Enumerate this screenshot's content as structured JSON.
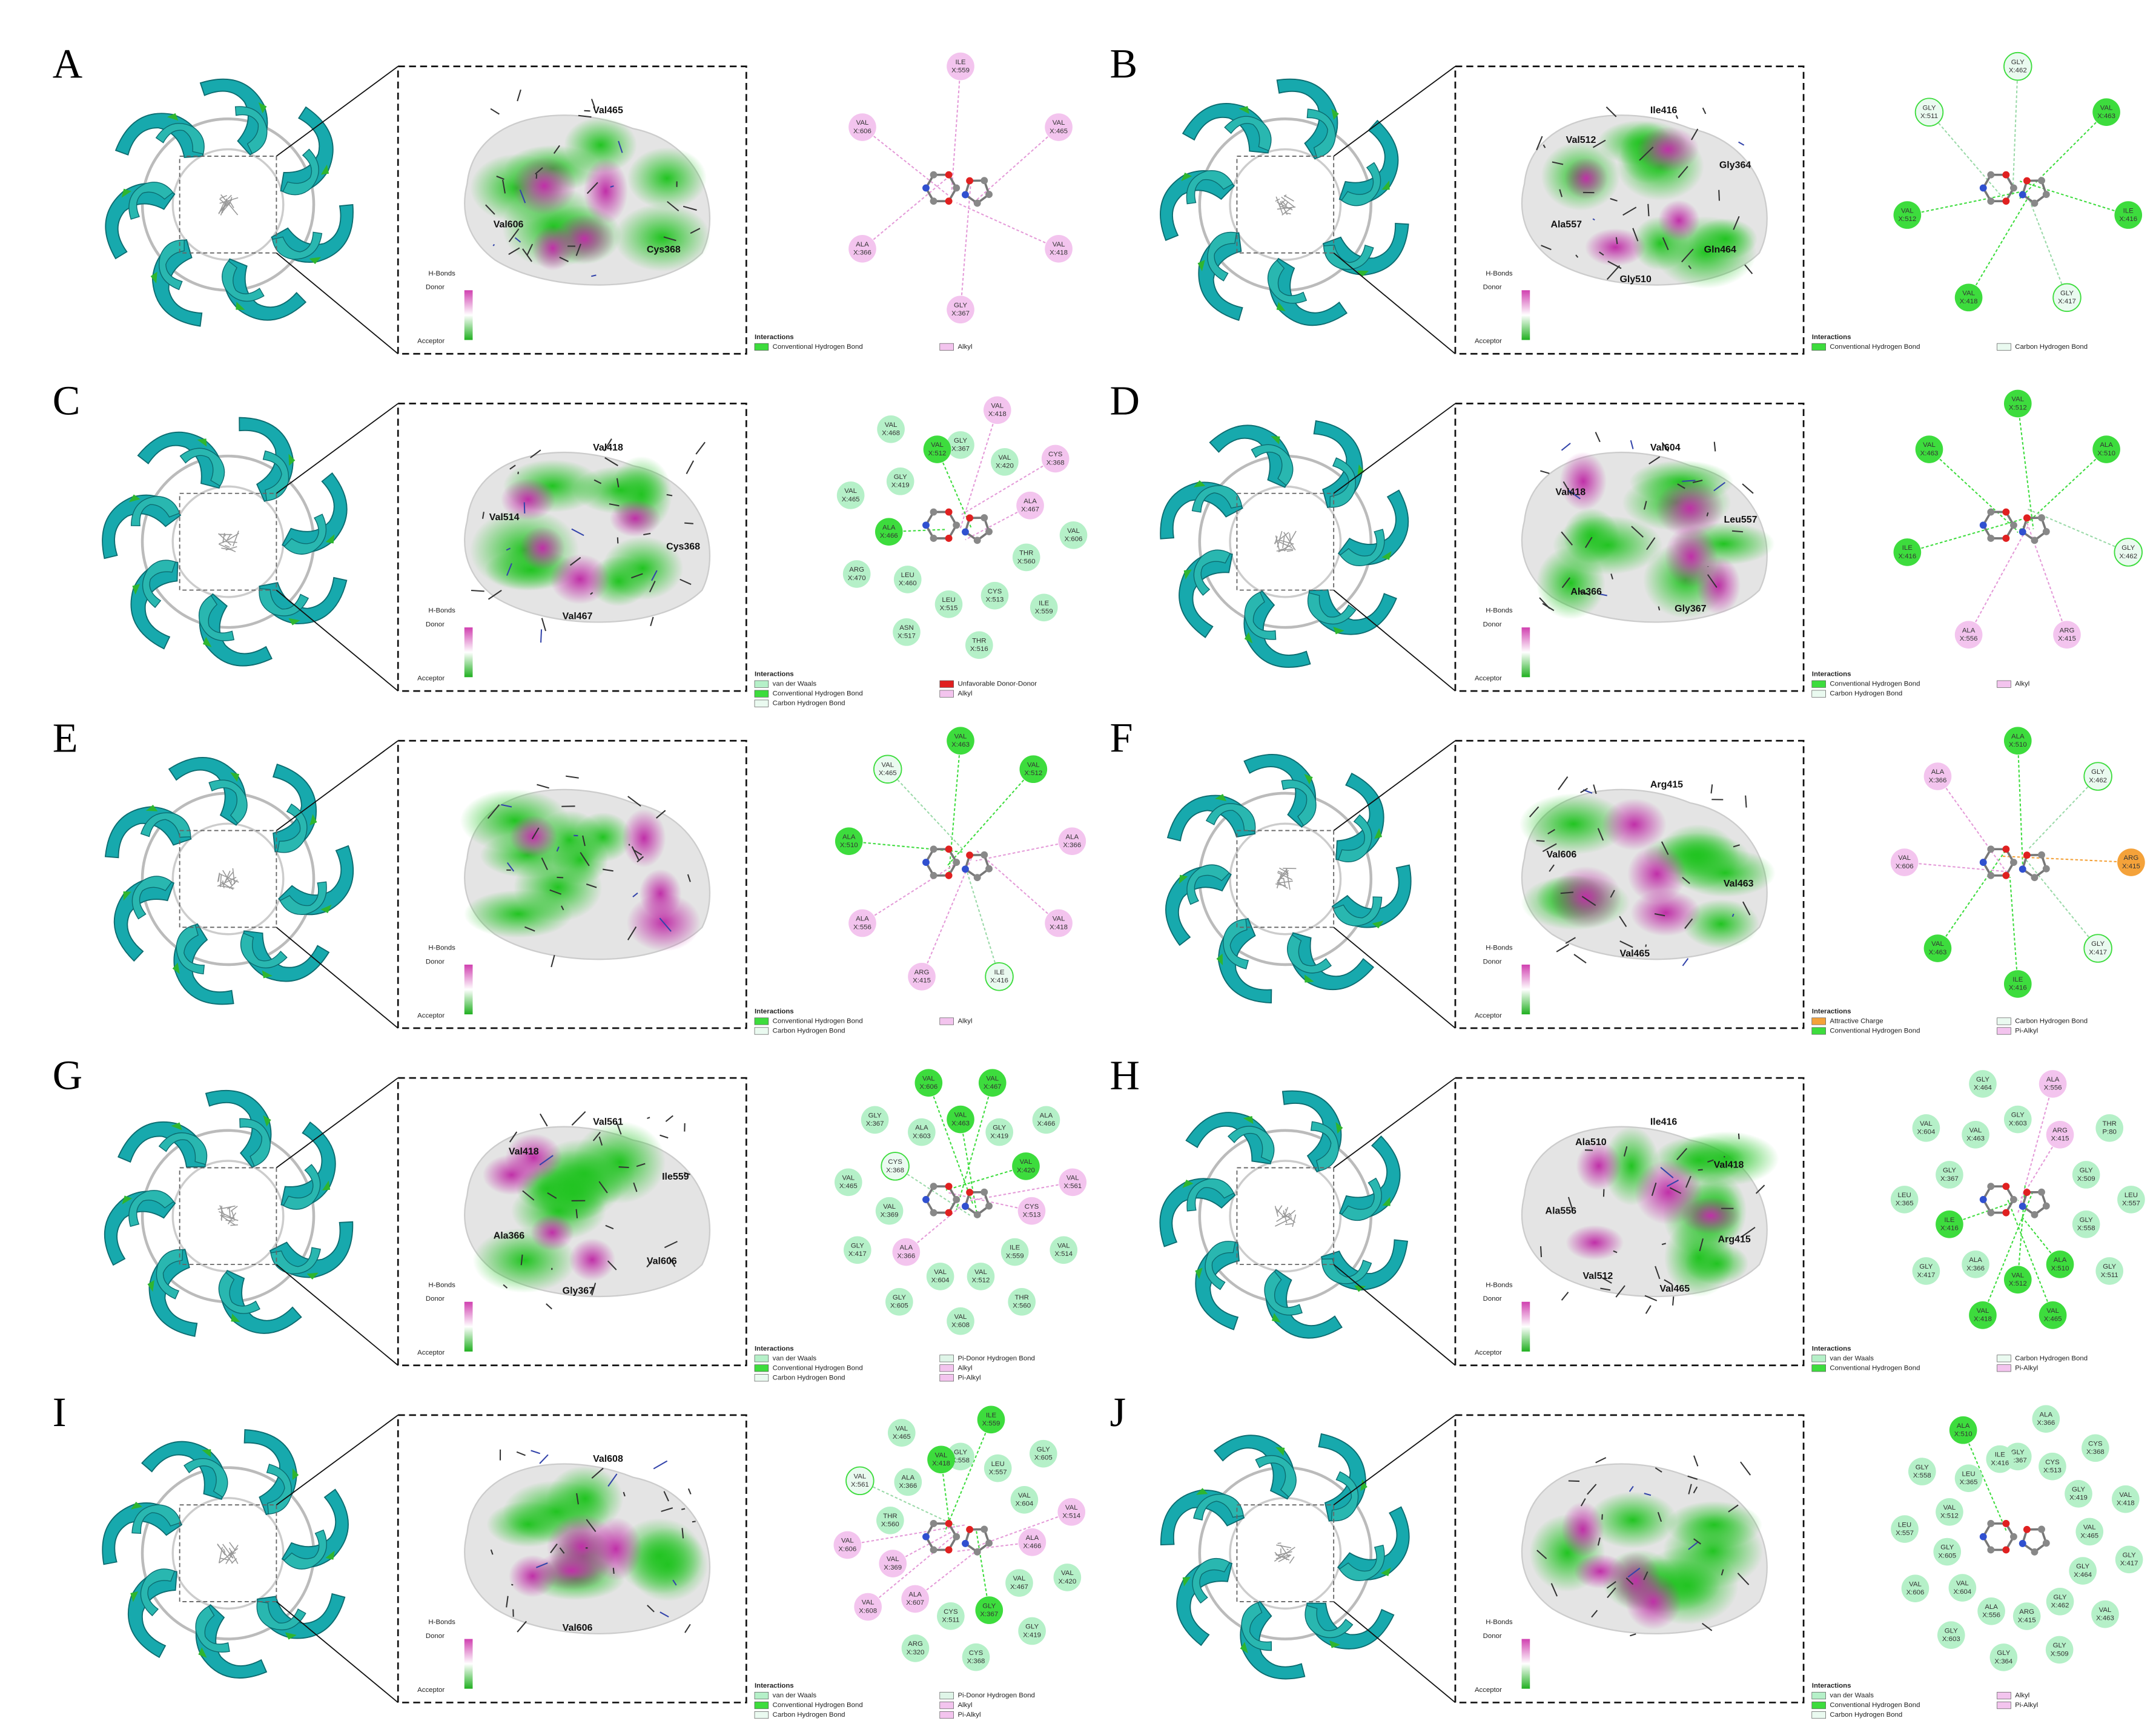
{
  "shared": {
    "hbond_title": "H-Bonds",
    "donor": "Donor",
    "acceptor": "Acceptor",
    "interactions": "Interactions"
  },
  "panels": [
    {
      "label": "A",
      "labels_3d": [
        "Val465",
        "Cys368",
        "Val606"
      ],
      "residues": [
        {
          "res": "ILE",
          "id": "X:559",
          "color": "#f3c4ee"
        },
        {
          "res": "VAL",
          "id": "X:465",
          "color": "#f3c4ee"
        },
        {
          "res": "VAL",
          "id": "X:418",
          "color": "#f3c4ee"
        },
        {
          "res": "GLY",
          "id": "X:367",
          "color": "#f3c4ee"
        },
        {
          "res": "ALA",
          "id": "X:366",
          "color": "#f3c4ee"
        },
        {
          "res": "VAL",
          "id": "X:606",
          "color": "#f3c4ee"
        }
      ],
      "legend": [
        {
          "text": "Conventional Hydrogen Bond",
          "color": "#3ddc3d"
        },
        {
          "text": "Alkyl",
          "color": "#f3c4ee"
        }
      ]
    },
    {
      "label": "B",
      "labels_3d": [
        "Ile416",
        "Gly364",
        "Gln464",
        "Gly510",
        "Ala557",
        "Val512"
      ],
      "residues": [
        {
          "res": "GLY",
          "id": "X:462",
          "color": "#eafaf0"
        },
        {
          "res": "VAL",
          "id": "X:463",
          "color": "#3ddc3d"
        },
        {
          "res": "ILE",
          "id": "X:416",
          "color": "#3ddc3d"
        },
        {
          "res": "GLY",
          "id": "X:417",
          "color": "#eafaf0"
        },
        {
          "res": "VAL",
          "id": "X:418",
          "color": "#3ddc3d"
        },
        {
          "res": "VAL",
          "id": "X:512",
          "color": "#3ddc3d"
        },
        {
          "res": "GLY",
          "id": "X:511",
          "color": "#eafaf0"
        }
      ],
      "legend": [
        {
          "text": "Conventional Hydrogen Bond",
          "color": "#3ddc3d"
        },
        {
          "text": "Carbon Hydrogen Bond",
          "color": "#eafaf0"
        }
      ]
    },
    {
      "label": "C",
      "labels_3d": [
        "Val418",
        "Cys368",
        "Val467",
        "Val514"
      ],
      "residues": [
        {
          "res": "GLY",
          "id": "X:367",
          "color": "#b5f0c8"
        },
        {
          "res": "VAL",
          "id": "X:418",
          "color": "#f3c4ee"
        },
        {
          "res": "VAL",
          "id": "X:420",
          "color": "#b5f0c8"
        },
        {
          "res": "CYS",
          "id": "X:368",
          "color": "#f3c4ee"
        },
        {
          "res": "ALA",
          "id": "X:467",
          "color": "#f3c4ee"
        },
        {
          "res": "VAL",
          "id": "X:606",
          "color": "#b5f0c8"
        },
        {
          "res": "THR",
          "id": "X:560",
          "color": "#b5f0c8"
        },
        {
          "res": "ILE",
          "id": "X:559",
          "color": "#b5f0c8"
        },
        {
          "res": "CYS",
          "id": "X:513",
          "color": "#b5f0c8"
        },
        {
          "res": "THR",
          "id": "X:516",
          "color": "#b5f0c8"
        },
        {
          "res": "LEU",
          "id": "X:515",
          "color": "#b5f0c8"
        },
        {
          "res": "ASN",
          "id": "X:517",
          "color": "#b5f0c8"
        },
        {
          "res": "LEU",
          "id": "X:460",
          "color": "#b5f0c8"
        },
        {
          "res": "ARG",
          "id": "X:470",
          "color": "#b5f0c8"
        },
        {
          "res": "ALA",
          "id": "X:466",
          "color": "#3ddc3d"
        },
        {
          "res": "VAL",
          "id": "X:465",
          "color": "#b5f0c8"
        },
        {
          "res": "GLY",
          "id": "X:419",
          "color": "#b5f0c8"
        },
        {
          "res": "VAL",
          "id": "X:468",
          "color": "#b5f0c8"
        },
        {
          "res": "VAL",
          "id": "X:512",
          "color": "#3ddc3d"
        }
      ],
      "legend": [
        {
          "text": "van der Waals",
          "color": "#b5f0c8"
        },
        {
          "text": "Conventional Hydrogen Bond",
          "color": "#3ddc3d"
        },
        {
          "text": "Carbon Hydrogen Bond",
          "color": "#eafaf0"
        },
        {
          "text": "Unfavorable Donor-Donor",
          "color": "#e02020"
        },
        {
          "text": "Alkyl",
          "color": "#f3c4ee"
        }
      ]
    },
    {
      "label": "D",
      "labels_3d": [
        "Val604",
        "Leu557",
        "Gly367",
        "Ala366",
        "Val418"
      ],
      "residues": [
        {
          "res": "VAL",
          "id": "X:512",
          "color": "#3ddc3d"
        },
        {
          "res": "ALA",
          "id": "X:510",
          "color": "#3ddc3d"
        },
        {
          "res": "GLY",
          "id": "X:462",
          "color": "#eafaf0"
        },
        {
          "res": "ARG",
          "id": "X:415",
          "color": "#f3c4ee"
        },
        {
          "res": "ALA",
          "id": "X:556",
          "color": "#f3c4ee"
        },
        {
          "res": "ILE",
          "id": "X:416",
          "color": "#3ddc3d"
        },
        {
          "res": "VAL",
          "id": "X:463",
          "color": "#3ddc3d"
        }
      ],
      "legend": [
        {
          "text": "Conventional Hydrogen Bond",
          "color": "#3ddc3d"
        },
        {
          "text": "Carbon Hydrogen Bond",
          "color": "#eafaf0"
        },
        {
          "text": "Alkyl",
          "color": "#f3c4ee"
        }
      ]
    },
    {
      "label": "E",
      "residues": [
        {
          "res": "VAL",
          "id": "X:463",
          "color": "#3ddc3d"
        },
        {
          "res": "VAL",
          "id": "X:512",
          "color": "#3ddc3d"
        },
        {
          "res": "ALA",
          "id": "X:366",
          "color": "#f3c4ee"
        },
        {
          "res": "VAL",
          "id": "X:418",
          "color": "#f3c4ee"
        },
        {
          "res": "ILE",
          "id": "X:416",
          "color": "#eafaf0"
        },
        {
          "res": "ARG",
          "id": "X:415",
          "color": "#f3c4ee"
        },
        {
          "res": "ALA",
          "id": "X:556",
          "color": "#f3c4ee"
        },
        {
          "res": "ALA",
          "id": "X:510",
          "color": "#3ddc3d"
        },
        {
          "res": "VAL",
          "id": "X:465",
          "color": "#eafaf0"
        }
      ],
      "legend": [
        {
          "text": "Conventional Hydrogen Bond",
          "color": "#3ddc3d"
        },
        {
          "text": "Carbon Hydrogen Bond",
          "color": "#eafaf0"
        },
        {
          "text": "Alkyl",
          "color": "#f3c4ee"
        }
      ]
    },
    {
      "label": "F",
      "labels_3d": [
        "Arg415",
        "Val463",
        "Val465",
        "Val606"
      ],
      "residues": [
        {
          "res": "ALA",
          "id": "X:510",
          "color": "#3ddc3d"
        },
        {
          "res": "GLY",
          "id": "X:462",
          "color": "#eafaf0"
        },
        {
          "res": "ARG",
          "id": "X:415",
          "color": "#f4a23a"
        },
        {
          "res": "GLY",
          "id": "X:417",
          "color": "#eafaf0"
        },
        {
          "res": "ILE",
          "id": "X:416",
          "color": "#3ddc3d"
        },
        {
          "res": "VAL",
          "id": "X:463",
          "color": "#3ddc3d"
        },
        {
          "res": "VAL",
          "id": "X:606",
          "color": "#f3c4ee"
        },
        {
          "res": "ALA",
          "id": "X:366",
          "color": "#f3c4ee"
        }
      ],
      "legend": [
        {
          "text": "Attractive Charge",
          "color": "#f4a23a"
        },
        {
          "text": "Conventional Hydrogen Bond",
          "color": "#3ddc3d"
        },
        {
          "text": "Carbon Hydrogen Bond",
          "color": "#eafaf0"
        },
        {
          "text": "Pi-Alkyl",
          "color": "#f3c4ee"
        }
      ]
    },
    {
      "label": "G",
      "labels_3d": [
        "Val561",
        "Ile559",
        "Val606",
        "Gly367",
        "Ala366",
        "Val418"
      ],
      "residues": [
        {
          "res": "VAL",
          "id": "X:463",
          "color": "#3ddc3d"
        },
        {
          "res": "VAL",
          "id": "X:467",
          "color": "#3ddc3d"
        },
        {
          "res": "GLY",
          "id": "X:419",
          "color": "#b5f0c8"
        },
        {
          "res": "ALA",
          "id": "X:466",
          "color": "#b5f0c8"
        },
        {
          "res": "VAL",
          "id": "X:420",
          "color": "#3ddc3d"
        },
        {
          "res": "VAL",
          "id": "X:561",
          "color": "#f3c4ee"
        },
        {
          "res": "CYS",
          "id": "X:513",
          "color": "#f3c4ee"
        },
        {
          "res": "VAL",
          "id": "X:514",
          "color": "#b5f0c8"
        },
        {
          "res": "ILE",
          "id": "X:559",
          "color": "#b5f0c8"
        },
        {
          "res": "THR",
          "id": "X:560",
          "color": "#b5f0c8"
        },
        {
          "res": "VAL",
          "id": "X:512",
          "color": "#b5f0c8"
        },
        {
          "res": "VAL",
          "id": "X:608",
          "color": "#b5f0c8"
        },
        {
          "res": "VAL",
          "id": "X:604",
          "color": "#b5f0c8"
        },
        {
          "res": "GLY",
          "id": "X:605",
          "color": "#b5f0c8"
        },
        {
          "res": "ALA",
          "id": "X:366",
          "color": "#f3c4ee"
        },
        {
          "res": "GLY",
          "id": "X:417",
          "color": "#b5f0c8"
        },
        {
          "res": "VAL",
          "id": "X:369",
          "color": "#b5f0c8"
        },
        {
          "res": "VAL",
          "id": "X:465",
          "color": "#b5f0c8"
        },
        {
          "res": "CYS",
          "id": "X:368",
          "color": "#eafaf0"
        },
        {
          "res": "GLY",
          "id": "X:367",
          "color": "#b5f0c8"
        },
        {
          "res": "ALA",
          "id": "X:603",
          "color": "#b5f0c8"
        },
        {
          "res": "VAL",
          "id": "X:606",
          "color": "#3ddc3d"
        }
      ],
      "legend": [
        {
          "text": "van der Waals",
          "color": "#b5f0c8"
        },
        {
          "text": "Conventional Hydrogen Bond",
          "color": "#3ddc3d"
        },
        {
          "text": "Carbon Hydrogen Bond",
          "color": "#eafaf0"
        },
        {
          "text": "Pi-Donor Hydrogen Bond",
          "color": "#dff5e8"
        },
        {
          "text": "Alkyl",
          "color": "#f3c4ee"
        },
        {
          "text": "Pi-Alkyl",
          "color": "#f3c4ee"
        }
      ]
    },
    {
      "label": "H",
      "labels_3d": [
        "Ile416",
        "Val418",
        "Arg415",
        "Val465",
        "Val512",
        "Ala556",
        "Ala510"
      ],
      "residues": [
        {
          "res": "GLY",
          "id": "X:603",
          "color": "#b5f0c8"
        },
        {
          "res": "ALA",
          "id": "X:556",
          "color": "#f3c4ee"
        },
        {
          "res": "ARG",
          "id": "X:415",
          "color": "#f3c4ee"
        },
        {
          "res": "THR",
          "id": "P:80",
          "color": "#b5f0c8"
        },
        {
          "res": "GLY",
          "id": "X:509",
          "color": "#b5f0c8"
        },
        {
          "res": "LEU",
          "id": "X:557",
          "color": "#b5f0c8"
        },
        {
          "res": "GLY",
          "id": "X:558",
          "color": "#b5f0c8"
        },
        {
          "res": "GLY",
          "id": "X:511",
          "color": "#b5f0c8"
        },
        {
          "res": "ALA",
          "id": "X:510",
          "color": "#3ddc3d"
        },
        {
          "res": "VAL",
          "id": "X:465",
          "color": "#3ddc3d"
        },
        {
          "res": "VAL",
          "id": "X:512",
          "color": "#3ddc3d"
        },
        {
          "res": "VAL",
          "id": "X:418",
          "color": "#3ddc3d"
        },
        {
          "res": "ALA",
          "id": "X:366",
          "color": "#b5f0c8"
        },
        {
          "res": "GLY",
          "id": "X:417",
          "color": "#b5f0c8"
        },
        {
          "res": "ILE",
          "id": "X:416",
          "color": "#3ddc3d"
        },
        {
          "res": "LEU",
          "id": "X:365",
          "color": "#b5f0c8"
        },
        {
          "res": "GLY",
          "id": "X:367",
          "color": "#b5f0c8"
        },
        {
          "res": "VAL",
          "id": "X:604",
          "color": "#b5f0c8"
        },
        {
          "res": "VAL",
          "id": "X:463",
          "color": "#b5f0c8"
        },
        {
          "res": "GLY",
          "id": "X:464",
          "color": "#b5f0c8"
        }
      ],
      "legend": [
        {
          "text": "van der Waals",
          "color": "#b5f0c8"
        },
        {
          "text": "Conventional Hydrogen Bond",
          "color": "#3ddc3d"
        },
        {
          "text": "Carbon Hydrogen Bond",
          "color": "#eafaf0"
        },
        {
          "text": "Pi-Alkyl",
          "color": "#f3c4ee"
        }
      ]
    },
    {
      "label": "I",
      "labels_3d": [
        "Val608",
        "Val606"
      ],
      "residues": [
        {
          "res": "GLY",
          "id": "X:558",
          "color": "#b5f0c8"
        },
        {
          "res": "ILE",
          "id": "X:559",
          "color": "#3ddc3d"
        },
        {
          "res": "LEU",
          "id": "X:557",
          "color": "#b5f0c8"
        },
        {
          "res": "GLY",
          "id": "X:605",
          "color": "#b5f0c8"
        },
        {
          "res": "VAL",
          "id": "X:604",
          "color": "#b5f0c8"
        },
        {
          "res": "VAL",
          "id": "X:514",
          "color": "#f3c4ee"
        },
        {
          "res": "ALA",
          "id": "X:466",
          "color": "#f3c4ee"
        },
        {
          "res": "VAL",
          "id": "X:420",
          "color": "#b5f0c8"
        },
        {
          "res": "VAL",
          "id": "X:467",
          "color": "#b5f0c8"
        },
        {
          "res": "GLY",
          "id": "X:419",
          "color": "#b5f0c8"
        },
        {
          "res": "GLY",
          "id": "X:367",
          "color": "#3ddc3d"
        },
        {
          "res": "CYS",
          "id": "X:368",
          "color": "#b5f0c8"
        },
        {
          "res": "CYS",
          "id": "X:511",
          "color": "#b5f0c8"
        },
        {
          "res": "ARG",
          "id": "X:320",
          "color": "#b5f0c8"
        },
        {
          "res": "ALA",
          "id": "X:607",
          "color": "#f3c4ee"
        },
        {
          "res": "VAL",
          "id": "X:608",
          "color": "#f3c4ee"
        },
        {
          "res": "VAL",
          "id": "X:369",
          "color": "#f3c4ee"
        },
        {
          "res": "VAL",
          "id": "X:606",
          "color": "#f3c4ee"
        },
        {
          "res": "THR",
          "id": "X:560",
          "color": "#b5f0c8"
        },
        {
          "res": "VAL",
          "id": "X:561",
          "color": "#eafaf0"
        },
        {
          "res": "ALA",
          "id": "X:366",
          "color": "#b5f0c8"
        },
        {
          "res": "VAL",
          "id": "X:465",
          "color": "#b5f0c8"
        },
        {
          "res": "VAL",
          "id": "X:418",
          "color": "#3ddc3d"
        }
      ],
      "legend": [
        {
          "text": "van der Waals",
          "color": "#b5f0c8"
        },
        {
          "text": "Conventional Hydrogen Bond",
          "color": "#3ddc3d"
        },
        {
          "text": "Carbon Hydrogen Bond",
          "color": "#eafaf0"
        },
        {
          "text": "Pi-Donor Hydrogen Bond",
          "color": "#dff5e8"
        },
        {
          "text": "Alkyl",
          "color": "#f3c4ee"
        },
        {
          "text": "Pi-Alkyl",
          "color": "#f3c4ee"
        }
      ]
    },
    {
      "label": "J",
      "residues": [
        {
          "res": "GLY",
          "id": "X:367",
          "color": "#b5f0c8"
        },
        {
          "res": "ALA",
          "id": "X:366",
          "color": "#b5f0c8"
        },
        {
          "res": "CYS",
          "id": "X:513",
          "color": "#b5f0c8"
        },
        {
          "res": "CYS",
          "id": "X:368",
          "color": "#b5f0c8"
        },
        {
          "res": "GLY",
          "id": "X:419",
          "color": "#b5f0c8"
        },
        {
          "res": "VAL",
          "id": "X:418",
          "color": "#b5f0c8"
        },
        {
          "res": "VAL",
          "id": "X:465",
          "color": "#b5f0c8"
        },
        {
          "res": "GLY",
          "id": "X:417",
          "color": "#b5f0c8"
        },
        {
          "res": "GLY",
          "id": "X:464",
          "color": "#b5f0c8"
        },
        {
          "res": "VAL",
          "id": "X:463",
          "color": "#b5f0c8"
        },
        {
          "res": "GLY",
          "id": "X:462",
          "color": "#b5f0c8"
        },
        {
          "res": "GLY",
          "id": "X:509",
          "color": "#b5f0c8"
        },
        {
          "res": "ARG",
          "id": "X:415",
          "color": "#b5f0c8"
        },
        {
          "res": "GLY",
          "id": "X:364",
          "color": "#b5f0c8"
        },
        {
          "res": "ALA",
          "id": "X:556",
          "color": "#b5f0c8"
        },
        {
          "res": "GLY",
          "id": "X:603",
          "color": "#b5f0c8"
        },
        {
          "res": "VAL",
          "id": "X:604",
          "color": "#b5f0c8"
        },
        {
          "res": "VAL",
          "id": "X:606",
          "color": "#b5f0c8"
        },
        {
          "res": "GLY",
          "id": "X:605",
          "color": "#b5f0c8"
        },
        {
          "res": "LEU",
          "id": "X:557",
          "color": "#b5f0c8"
        },
        {
          "res": "VAL",
          "id": "X:512",
          "color": "#b5f0c8"
        },
        {
          "res": "GLY",
          "id": "X:558",
          "color": "#b5f0c8"
        },
        {
          "res": "LEU",
          "id": "X:365",
          "color": "#b5f0c8"
        },
        {
          "res": "ALA",
          "id": "X:510",
          "color": "#3ddc3d"
        },
        {
          "res": "ILE",
          "id": "X:416",
          "color": "#b5f0c8"
        }
      ],
      "legend": [
        {
          "text": "van der Waals",
          "color": "#b5f0c8"
        },
        {
          "text": "Conventional Hydrogen Bond",
          "color": "#3ddc3d"
        },
        {
          "text": "Carbon Hydrogen Bond",
          "color": "#eafaf0"
        },
        {
          "text": "Alkyl",
          "color": "#f3c4ee"
        },
        {
          "text": "Pi-Alkyl",
          "color": "#f3c4ee"
        }
      ]
    }
  ]
}
